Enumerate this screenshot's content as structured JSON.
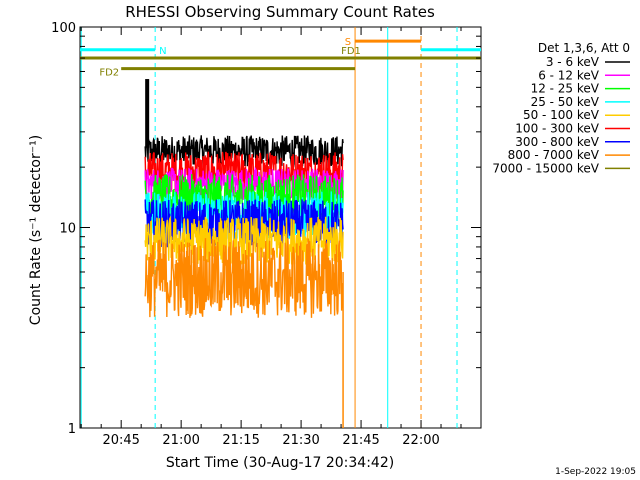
{
  "chart_data": {
    "type": "line",
    "title": "RHESSI Observing Summary Count Rates",
    "xlabel": "Start Time (30-Aug-17 20:34:42)",
    "ylabel": "Count Rate (s⁻¹ detector⁻¹)",
    "yscale": "log",
    "ylim": [
      1,
      100
    ],
    "xlim": [
      "20:34:42",
      "22:15:00"
    ],
    "x_ticks": [
      "20:45",
      "21:00",
      "21:15",
      "21:30",
      "21:45",
      "22:00"
    ],
    "y_ticks": [
      "1",
      "10",
      "100"
    ],
    "legend": {
      "header": "Det 1,3,6, Att 0",
      "placement": "right",
      "entries": [
        {
          "label": "3 - 6 keV",
          "color": "#000000"
        },
        {
          "label": "6 - 12 keV",
          "color": "#ff00ff"
        },
        {
          "label": "12 - 25 keV",
          "color": "#00ff00"
        },
        {
          "label": "25 - 50 keV",
          "color": "#00ffff"
        },
        {
          "label": "50 - 100 keV",
          "color": "#ffcc00"
        },
        {
          "label": "100 - 300 keV",
          "color": "#ff0000"
        },
        {
          "label": "300 - 800 keV",
          "color": "#0000ff"
        },
        {
          "label": "800 - 7000 keV",
          "color": "#ff8800"
        },
        {
          "label": "7000 - 15000 keV",
          "color": "#808000"
        }
      ]
    },
    "series": [
      {
        "name": "3 - 6 keV",
        "color": "#000000",
        "level": 24,
        "spread": 0.08,
        "start": "20:51:00",
        "end": "21:40:30"
      },
      {
        "name": "100 - 300 keV",
        "color": "#ff0000",
        "level": 19,
        "spread": 0.1,
        "start": "20:51:00",
        "end": "21:40:30"
      },
      {
        "name": "6 - 12 keV",
        "color": "#ff00ff",
        "level": 16.5,
        "spread": 0.08,
        "start": "20:51:00",
        "end": "21:40:30"
      },
      {
        "name": "12 - 25 keV",
        "color": "#00ff00",
        "level": 14,
        "spread": 0.12,
        "start": "20:51:00",
        "end": "21:40:30"
      },
      {
        "name": "25 - 50 keV",
        "color": "#00ffff",
        "level": 11.5,
        "spread": 0.12,
        "start": "20:51:00",
        "end": "21:40:30"
      },
      {
        "name": "300 - 800 keV",
        "color": "#0000ff",
        "level": 10.5,
        "spread": 0.12,
        "start": "20:51:00",
        "end": "21:40:30"
      },
      {
        "name": "50 - 100 keV",
        "color": "#ffcc00",
        "level": 8.6,
        "spread": 0.12,
        "start": "20:51:00",
        "end": "21:40:30"
      },
      {
        "name": "800 - 7000 keV",
        "color": "#ff8800",
        "level": 5.6,
        "spread": 0.2,
        "start": "20:51:00",
        "end": "21:40:30"
      }
    ],
    "spike": {
      "color": "#000000",
      "start": "20:51:00",
      "end": "20:52:00",
      "min": 25,
      "max": 55
    },
    "flag_bars": [
      {
        "label": "N",
        "color": "#00ffff",
        "y": 77,
        "start": "20:34:42",
        "end": "20:53:30"
      },
      {
        "label": "",
        "color": "#00ffff",
        "y": 77,
        "start": "22:00:00",
        "end": "22:15:00"
      },
      {
        "label": "FD1",
        "color": "#808000",
        "y": 70,
        "start": "20:34:42",
        "end": "21:43:30"
      },
      {
        "label": "",
        "color": "#808000",
        "y": 70,
        "start": "21:43:30",
        "end": "22:15:00"
      },
      {
        "label": "FD2",
        "color": "#808000",
        "y": 62,
        "start": "20:45:00",
        "end": "21:43:30"
      },
      {
        "label": "S",
        "color": "#ff8800",
        "y": 85,
        "start": "21:43:30",
        "end": "22:00:00"
      }
    ],
    "vlines": [
      {
        "time": "20:35:00",
        "color": "#00ffff",
        "style": "solid"
      },
      {
        "time": "20:53:30",
        "color": "#00ffff",
        "style": "dashed"
      },
      {
        "time": "21:43:30",
        "color": "#ff8800",
        "style": "solid"
      },
      {
        "time": "21:51:40",
        "color": "#00ffff",
        "style": "solid"
      },
      {
        "time": "22:00:00",
        "color": "#ff8800",
        "style": "dashed"
      },
      {
        "time": "22:09:00",
        "color": "#00ffff",
        "style": "dashed"
      }
    ],
    "footer_timestamp": "1-Sep-2022 19:05"
  }
}
